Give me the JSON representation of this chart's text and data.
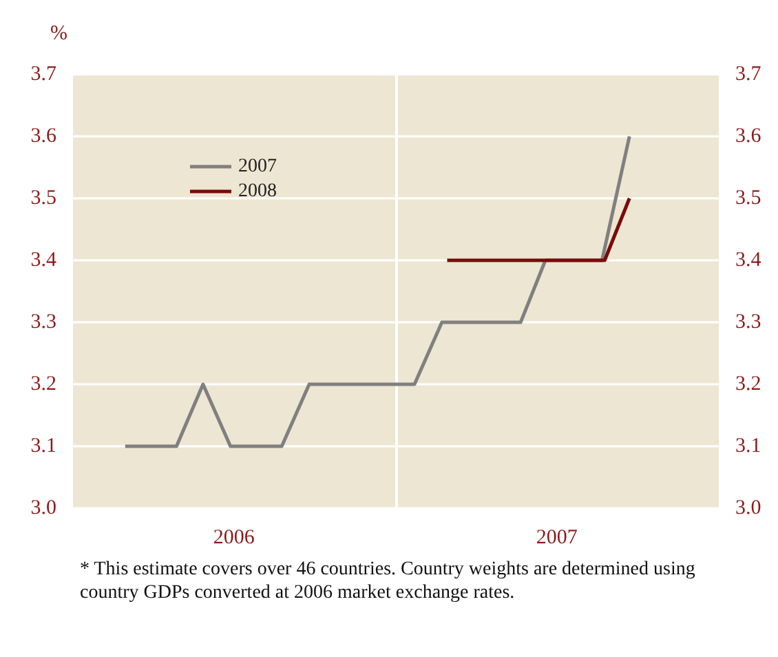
{
  "chart_data": {
    "type": "line",
    "ylabel": "%",
    "annotations": [
      "* This estimate covers over 46 countries. Country weights are determined using country GDPs converted at 2006 market exchange rates."
    ],
    "xlim": [
      "2006-01-01",
      "2008-01-01"
    ],
    "xticks": [
      {
        "value": "2006-07-02",
        "label": "2006"
      },
      {
        "value": "2007-07-02",
        "label": "2007"
      }
    ],
    "ylim": [
      3.0,
      3.7
    ],
    "yticks": [
      {
        "value": 3.0,
        "label": "3.0"
      },
      {
        "value": 3.1,
        "label": "3.1"
      },
      {
        "value": 3.2,
        "label": "3.2"
      },
      {
        "value": 3.3,
        "label": "3.3"
      },
      {
        "value": 3.4,
        "label": "3.4"
      },
      {
        "value": 3.5,
        "label": "3.5"
      },
      {
        "value": 3.6,
        "label": "3.6"
      },
      {
        "value": 3.7,
        "label": "3.7"
      }
    ],
    "y2lim": [
      3.0,
      3.7
    ],
    "y2ticks": [
      {
        "value": 3.0,
        "label": "3.0"
      },
      {
        "value": 3.1,
        "label": "3.1"
      },
      {
        "value": 3.2,
        "label": "3.2"
      },
      {
        "value": 3.3,
        "label": "3.3"
      },
      {
        "value": 3.4,
        "label": "3.4"
      },
      {
        "value": 3.5,
        "label": "3.5"
      },
      {
        "value": 3.6,
        "label": "3.6"
      },
      {
        "value": 3.7,
        "label": "3.7"
      }
    ],
    "series": [
      {
        "name": "2007",
        "color": "#808080",
        "x": [
          "2006-03-01",
          "2006-04-28",
          "2006-05-28",
          "2006-06-28",
          "2006-08-25",
          "2006-09-25",
          "2007-01-22",
          "2007-02-22",
          "2007-05-22",
          "2007-06-19",
          "2007-08-22",
          "2007-09-22"
        ],
        "values": [
          3.1,
          3.1,
          3.2,
          3.1,
          3.1,
          3.2,
          3.2,
          3.3,
          3.3,
          3.4,
          3.4,
          3.6
        ]
      },
      {
        "name": "2008",
        "color": "#7a0a0a",
        "x": [
          "2007-02-28",
          "2007-08-25",
          "2007-09-22"
        ],
        "values": [
          3.4,
          3.4,
          3.5
        ]
      }
    ],
    "ref_lines": [
      {
        "axis": "x",
        "value": "2007-01-01",
        "label": null,
        "color": "#ffffff"
      }
    ],
    "grid": "y",
    "legend": "top left"
  }
}
